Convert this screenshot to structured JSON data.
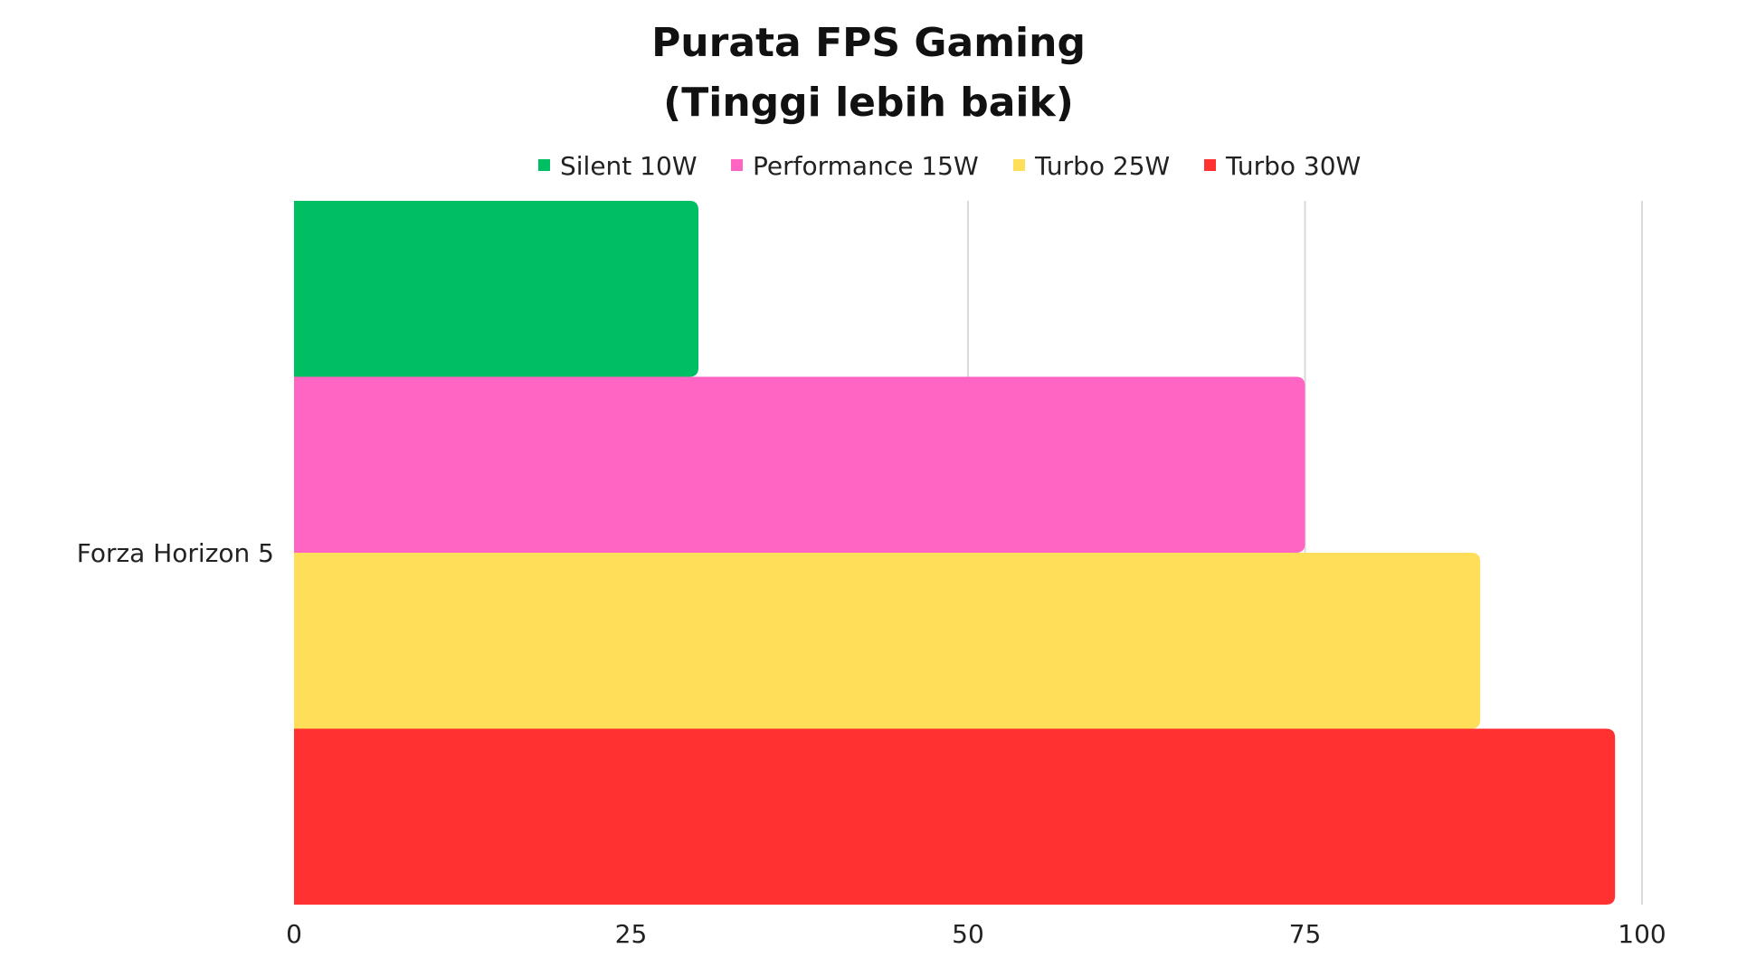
{
  "chart_data": {
    "type": "bar",
    "orientation": "horizontal",
    "title": "Purata FPS Gaming",
    "subtitle": "(Tinggi lebih baik)",
    "categories": [
      "Forza Horizon 5"
    ],
    "series": [
      {
        "name": "Silent 10W",
        "color": "#00BF63",
        "values": [
          30
        ]
      },
      {
        "name": "Performance 15W",
        "color": "#FF66C4",
        "values": [
          75
        ]
      },
      {
        "name": "Turbo 25W",
        "color": "#FFDE59",
        "values": [
          88
        ]
      },
      {
        "name": "Turbo 30W",
        "color": "#FF3131",
        "values": [
          98
        ]
      }
    ],
    "xlim": [
      0,
      100
    ],
    "xticks": [
      0,
      25,
      50,
      75,
      100
    ],
    "xlabel": "",
    "ylabel": "",
    "grid": "vertical",
    "legend": "top-center"
  }
}
